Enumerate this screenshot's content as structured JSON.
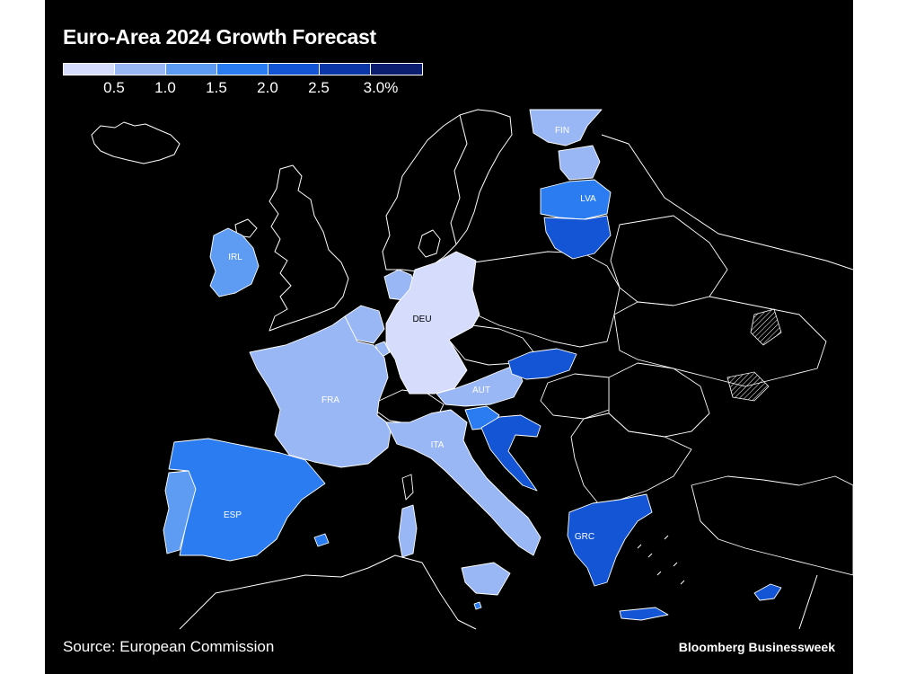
{
  "title": "Euro-Area 2024 Growth Forecast",
  "legend": {
    "colors": [
      "#d6dcfb",
      "#9ab7f5",
      "#5e9cf4",
      "#2a7cf0",
      "#1455d6",
      "#0a36a8",
      "#0a1d6e"
    ],
    "labels": [
      "0.5",
      "1.0",
      "1.5",
      "2.0",
      "2.5",
      "3.0%"
    ]
  },
  "labels": {
    "fin": "FIN",
    "lva": "LVA",
    "irl": "IRL",
    "deu": "DEU",
    "fra": "FRA",
    "aut": "AUT",
    "ita": "ITA",
    "esp": "ESP",
    "grc": "GRC"
  },
  "fills": {
    "fin": "#9ab7f5",
    "est": "#9ab7f5",
    "lva": "#2a7cf0",
    "ltu": "#1455d6",
    "irl": "#5e9cf4",
    "deu": "#d6dcfb",
    "bel": "#9ab7f5",
    "nld": "#9ab7f5",
    "lux": "#9ab7f5",
    "fra": "#9ab7f5",
    "aut": "#9ab7f5",
    "svk": "#1455d6",
    "svn": "#2a7cf0",
    "hrv": "#1455d6",
    "ita": "#9ab7f5",
    "esp": "#2a7cf0",
    "prt": "#5e9cf4",
    "grc": "#1455d6",
    "cyp": "#1455d6",
    "mlt": "#2a7cf0"
  },
  "source": "Source: European Commission",
  "brand": "Bloomberg Businessweek"
}
